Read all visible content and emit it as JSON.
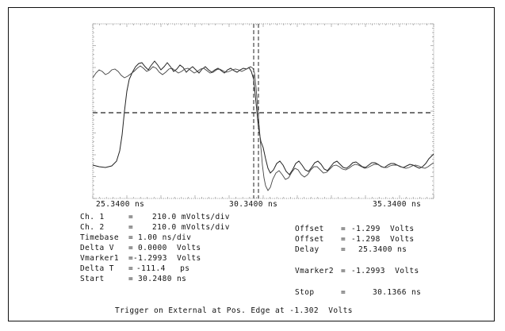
{
  "scope": {
    "time_labels": [
      "25.3400 ns",
      "30.3400 ns",
      "35.3400 ns"
    ],
    "left": [
      {
        "name": "Ch. 1",
        "eq": "=",
        "value": "210.0 mVolts/div"
      },
      {
        "name": "Ch. 2",
        "eq": "=",
        "value": "210.0 mVolts/div"
      },
      {
        "name": "Timebase",
        "eq": "=",
        "value": "1.00 ns/div"
      },
      {
        "name": "Delta V",
        "eq": "=",
        "value": "0.0000  Volts"
      },
      {
        "name": "Vmarker1",
        "eq": "=",
        "value": "-1.2993  Volts"
      },
      {
        "name": "Delta T",
        "eq": "=",
        "value": "-111.4   ps"
      },
      {
        "name": "Start",
        "eq": "=",
        "value": "30.2480 ns"
      }
    ],
    "right": {
      "offset1": {
        "name": "Offset",
        "eq": "=",
        "value": "-1.299  Volts"
      },
      "offset2": {
        "name": "Offset",
        "eq": "=",
        "value": "-1.298  Volts"
      },
      "delay": {
        "name": "Delay",
        "eq": "=",
        "value": "25.3400 ns"
      },
      "vmarker2": {
        "name": "Vmarker2",
        "eq": "=",
        "value": "-1.2993  Volts"
      },
      "stop": {
        "name": "Stop",
        "eq": "=",
        "value": "30.1366 ns"
      }
    },
    "trigger": "Trigger on External at Pos. Edge at -1.302  Volts"
  }
}
